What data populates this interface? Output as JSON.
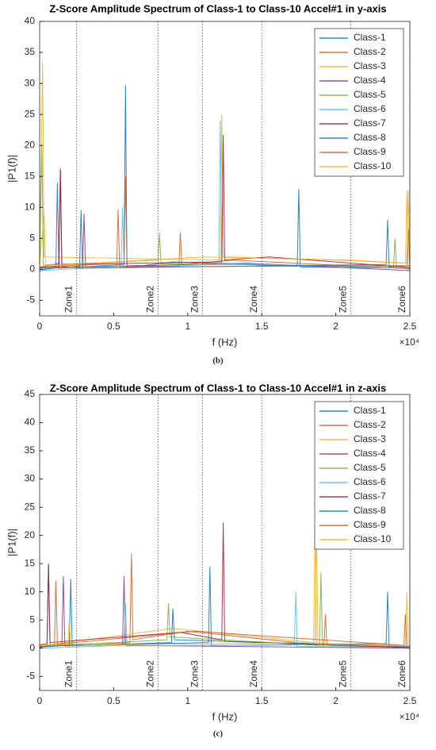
{
  "chart_data": [
    {
      "type": "line",
      "title": "Z-Score Amplitude Spectrum of Class-1 to Class-10 Accel#1 in y-axis",
      "caption": "(b)",
      "x_label": "f (Hz)",
      "y_label": "|P1(f)|",
      "x_exponent": "×10⁴",
      "legend": "northeast",
      "grid": false,
      "xlim": [
        0,
        25000
      ],
      "ylim": [
        -7.5,
        40
      ],
      "xticks": [
        0,
        {
          "value": 5000,
          "label": "0.5"
        },
        {
          "value": 10000,
          "label": "1"
        },
        {
          "value": 15000,
          "label": "1.5"
        },
        {
          "value": 20000,
          "label": "2"
        },
        {
          "value": 25000,
          "label": "2.5"
        }
      ],
      "yticks": [
        -5,
        0,
        5,
        10,
        15,
        20,
        25,
        30,
        35,
        40
      ],
      "zones": [
        {
          "x": 2500,
          "label": "Zone1"
        },
        {
          "x": 8000,
          "label": "Zone2"
        },
        {
          "x": 11000,
          "label": "Zone3"
        },
        {
          "x": 15000,
          "label": "Zone4"
        },
        {
          "x": 21000,
          "label": "Zone5"
        },
        {
          "x": 25000,
          "label": "Zone6"
        }
      ],
      "series": [
        {
          "name": "Class-1",
          "color": "#0072BD",
          "x": [
            0,
            1100,
            1200,
            1300,
            5700,
            5800,
            5900,
            9000,
            17400,
            17500,
            17600,
            25000
          ],
          "values": [
            -0.3,
            0.5,
            14,
            0.2,
            0.8,
            29.7,
            0.3,
            1.2,
            0.5,
            13,
            0.4,
            0.2
          ]
        },
        {
          "name": "Class-2",
          "color": "#D95319",
          "x": [
            0,
            5700,
            5800,
            5900,
            9400,
            9500,
            9600,
            13000,
            25000
          ],
          "values": [
            0.4,
            1,
            15,
            0.6,
            0.5,
            6,
            0.8,
            1.5,
            0.1
          ]
        },
        {
          "name": "Class-3",
          "color": "#EDB120",
          "x": [
            0,
            200,
            300,
            12200,
            12300,
            12400,
            20000,
            24800,
            24900,
            25000
          ],
          "values": [
            1,
            33.5,
            2,
            1.5,
            25,
            2,
            1.5,
            1,
            12.7,
            0.5
          ]
        },
        {
          "name": "Class-4",
          "color": "#7E2F8E",
          "x": [
            0,
            1300,
            1400,
            1500,
            2900,
            3000,
            3100,
            14000,
            25000
          ],
          "values": [
            0.3,
            1,
            16.3,
            0.5,
            0.2,
            9,
            0.4,
            1,
            -0.2
          ]
        },
        {
          "name": "Class-5",
          "color": "#77AC30",
          "x": [
            0,
            150,
            250,
            8000,
            8100,
            8200,
            23900,
            24000,
            24100,
            25000
          ],
          "values": [
            0.5,
            20,
            0.7,
            1.5,
            5.8,
            0.9,
            0.5,
            5,
            0.3,
            0
          ]
        },
        {
          "name": "Class-6",
          "color": "#4DBEEE",
          "x": [
            0,
            5500,
            5600,
            5700,
            12100,
            12200,
            12300,
            25000
          ],
          "values": [
            -0.2,
            0.5,
            10,
            0.3,
            0.8,
            24,
            1,
            0.2
          ]
        },
        {
          "name": "Class-7",
          "color": "#A2142F",
          "x": [
            0,
            1300,
            1400,
            1500,
            12300,
            12400,
            12500,
            15500,
            25000
          ],
          "values": [
            0.2,
            0.4,
            16,
            0.8,
            1.2,
            21.7,
            1.5,
            2,
            0.3
          ]
        },
        {
          "name": "Class-8",
          "color": "#0072BD",
          "x": [
            0,
            2700,
            2800,
            2900,
            23400,
            23500,
            23600,
            25000
          ],
          "values": [
            0,
            0.5,
            9.5,
            0.2,
            0.8,
            8,
            0.4,
            0.6
          ]
        },
        {
          "name": "Class-9",
          "color": "#D95319",
          "x": [
            0,
            5200,
            5300,
            5400,
            24800,
            24900,
            25000
          ],
          "values": [
            0.3,
            0.5,
            9.7,
            0.4,
            0.6,
            6.5,
            0.2
          ]
        },
        {
          "name": "Class-10",
          "color": "#EDB120",
          "x": [
            0,
            300,
            400,
            11000,
            21000,
            24700,
            24800,
            24900,
            25000
          ],
          "values": [
            0.8,
            9,
            0.6,
            2,
            1.5,
            1,
            12.7,
            0.5,
            0.3
          ]
        }
      ]
    },
    {
      "type": "line",
      "title": "Z-Score Amplitude Spectrum of Class-1 to Class-10 Accel#1 in z-axis",
      "caption": "(c)",
      "x_label": "f (Hz)",
      "y_label": "|P1(f)|",
      "x_exponent": "×10⁴",
      "legend": "northeast",
      "grid": false,
      "xlim": [
        0,
        25000
      ],
      "ylim": [
        -7.5,
        45
      ],
      "xticks": [
        0,
        {
          "value": 5000,
          "label": "0.5"
        },
        {
          "value": 10000,
          "label": "1"
        },
        {
          "value": 15000,
          "label": "1.5"
        },
        {
          "value": 20000,
          "label": "2"
        },
        {
          "value": 25000,
          "label": "2.5"
        }
      ],
      "yticks": [
        -5,
        0,
        5,
        10,
        15,
        20,
        25,
        30,
        35,
        40,
        45
      ],
      "zones": [
        {
          "x": 2500,
          "label": "Zone1"
        },
        {
          "x": 8000,
          "label": "Zone2"
        },
        {
          "x": 11000,
          "label": "Zone3"
        },
        {
          "x": 15000,
          "label": "Zone4"
        },
        {
          "x": 21000,
          "label": "Zone5"
        },
        {
          "x": 25000,
          "label": "Zone6"
        }
      ],
      "series": [
        {
          "name": "Class-1",
          "color": "#0072BD",
          "x": [
            0,
            500,
            600,
            700,
            11400,
            11500,
            11600,
            23400,
            23500,
            23600,
            25000
          ],
          "values": [
            0,
            0.6,
            15,
            0.4,
            1,
            14.5,
            0.5,
            0.8,
            10,
            0.3,
            0
          ]
        },
        {
          "name": "Class-2",
          "color": "#D95319",
          "x": [
            0,
            6100,
            6200,
            6300,
            10000,
            19200,
            19300,
            19400,
            25000
          ],
          "values": [
            0.5,
            1,
            16.8,
            1.5,
            3,
            0.5,
            6,
            0.5,
            0.2
          ]
        },
        {
          "name": "Class-3",
          "color": "#EDB120",
          "x": [
            0,
            9000,
            18500,
            18600,
            18700,
            24700,
            24800,
            24900,
            25000
          ],
          "values": [
            0.4,
            3.5,
            1,
            21.5,
            0.8,
            0.5,
            10,
            0.3,
            0
          ]
        },
        {
          "name": "Class-4",
          "color": "#7E2F8E",
          "x": [
            0,
            1500,
            1600,
            1700,
            5600,
            5700,
            5800,
            25000
          ],
          "values": [
            0.2,
            0.5,
            12.8,
            0.4,
            0.7,
            12.8,
            0.5,
            0
          ]
        },
        {
          "name": "Class-5",
          "color": "#77AC30",
          "x": [
            0,
            8600,
            8700,
            8800,
            18900,
            19000,
            19100,
            25000
          ],
          "values": [
            0.3,
            1.5,
            8,
            2,
            0.5,
            13.4,
            0.6,
            0.1
          ]
        },
        {
          "name": "Class-6",
          "color": "#4DBEEE",
          "x": [
            0,
            5700,
            5800,
            5900,
            17200,
            17300,
            17400,
            25000
          ],
          "values": [
            0,
            0.5,
            8,
            0.4,
            0.6,
            10,
            0.3,
            0.2
          ]
        },
        {
          "name": "Class-7",
          "color": "#A2142F",
          "x": [
            0,
            500,
            600,
            700,
            9500,
            12300,
            12400,
            12500,
            25000
          ],
          "values": [
            0.6,
            0.8,
            14.8,
            1,
            2.8,
            1.5,
            22.3,
            1.2,
            0.1
          ]
        },
        {
          "name": "Class-8",
          "color": "#0072BD",
          "x": [
            0,
            2000,
            2100,
            2200,
            8900,
            9000,
            9100,
            25000
          ],
          "values": [
            0.2,
            0.5,
            12.3,
            0.4,
            1,
            7,
            1.5,
            0.3
          ]
        },
        {
          "name": "Class-9",
          "color": "#D95319",
          "x": [
            0,
            1000,
            1100,
            1200,
            10500,
            24600,
            24700,
            24800,
            25000
          ],
          "values": [
            0.3,
            0.5,
            12,
            0.7,
            3,
            0.5,
            6,
            0.2,
            0.1
          ]
        },
        {
          "name": "Class-10",
          "color": "#EDB120",
          "x": [
            0,
            1900,
            2000,
            2100,
            18600,
            18700,
            18800,
            25000
          ],
          "values": [
            0.5,
            0.6,
            5,
            0.5,
            1,
            21,
            0.6,
            0.4
          ]
        }
      ]
    }
  ]
}
